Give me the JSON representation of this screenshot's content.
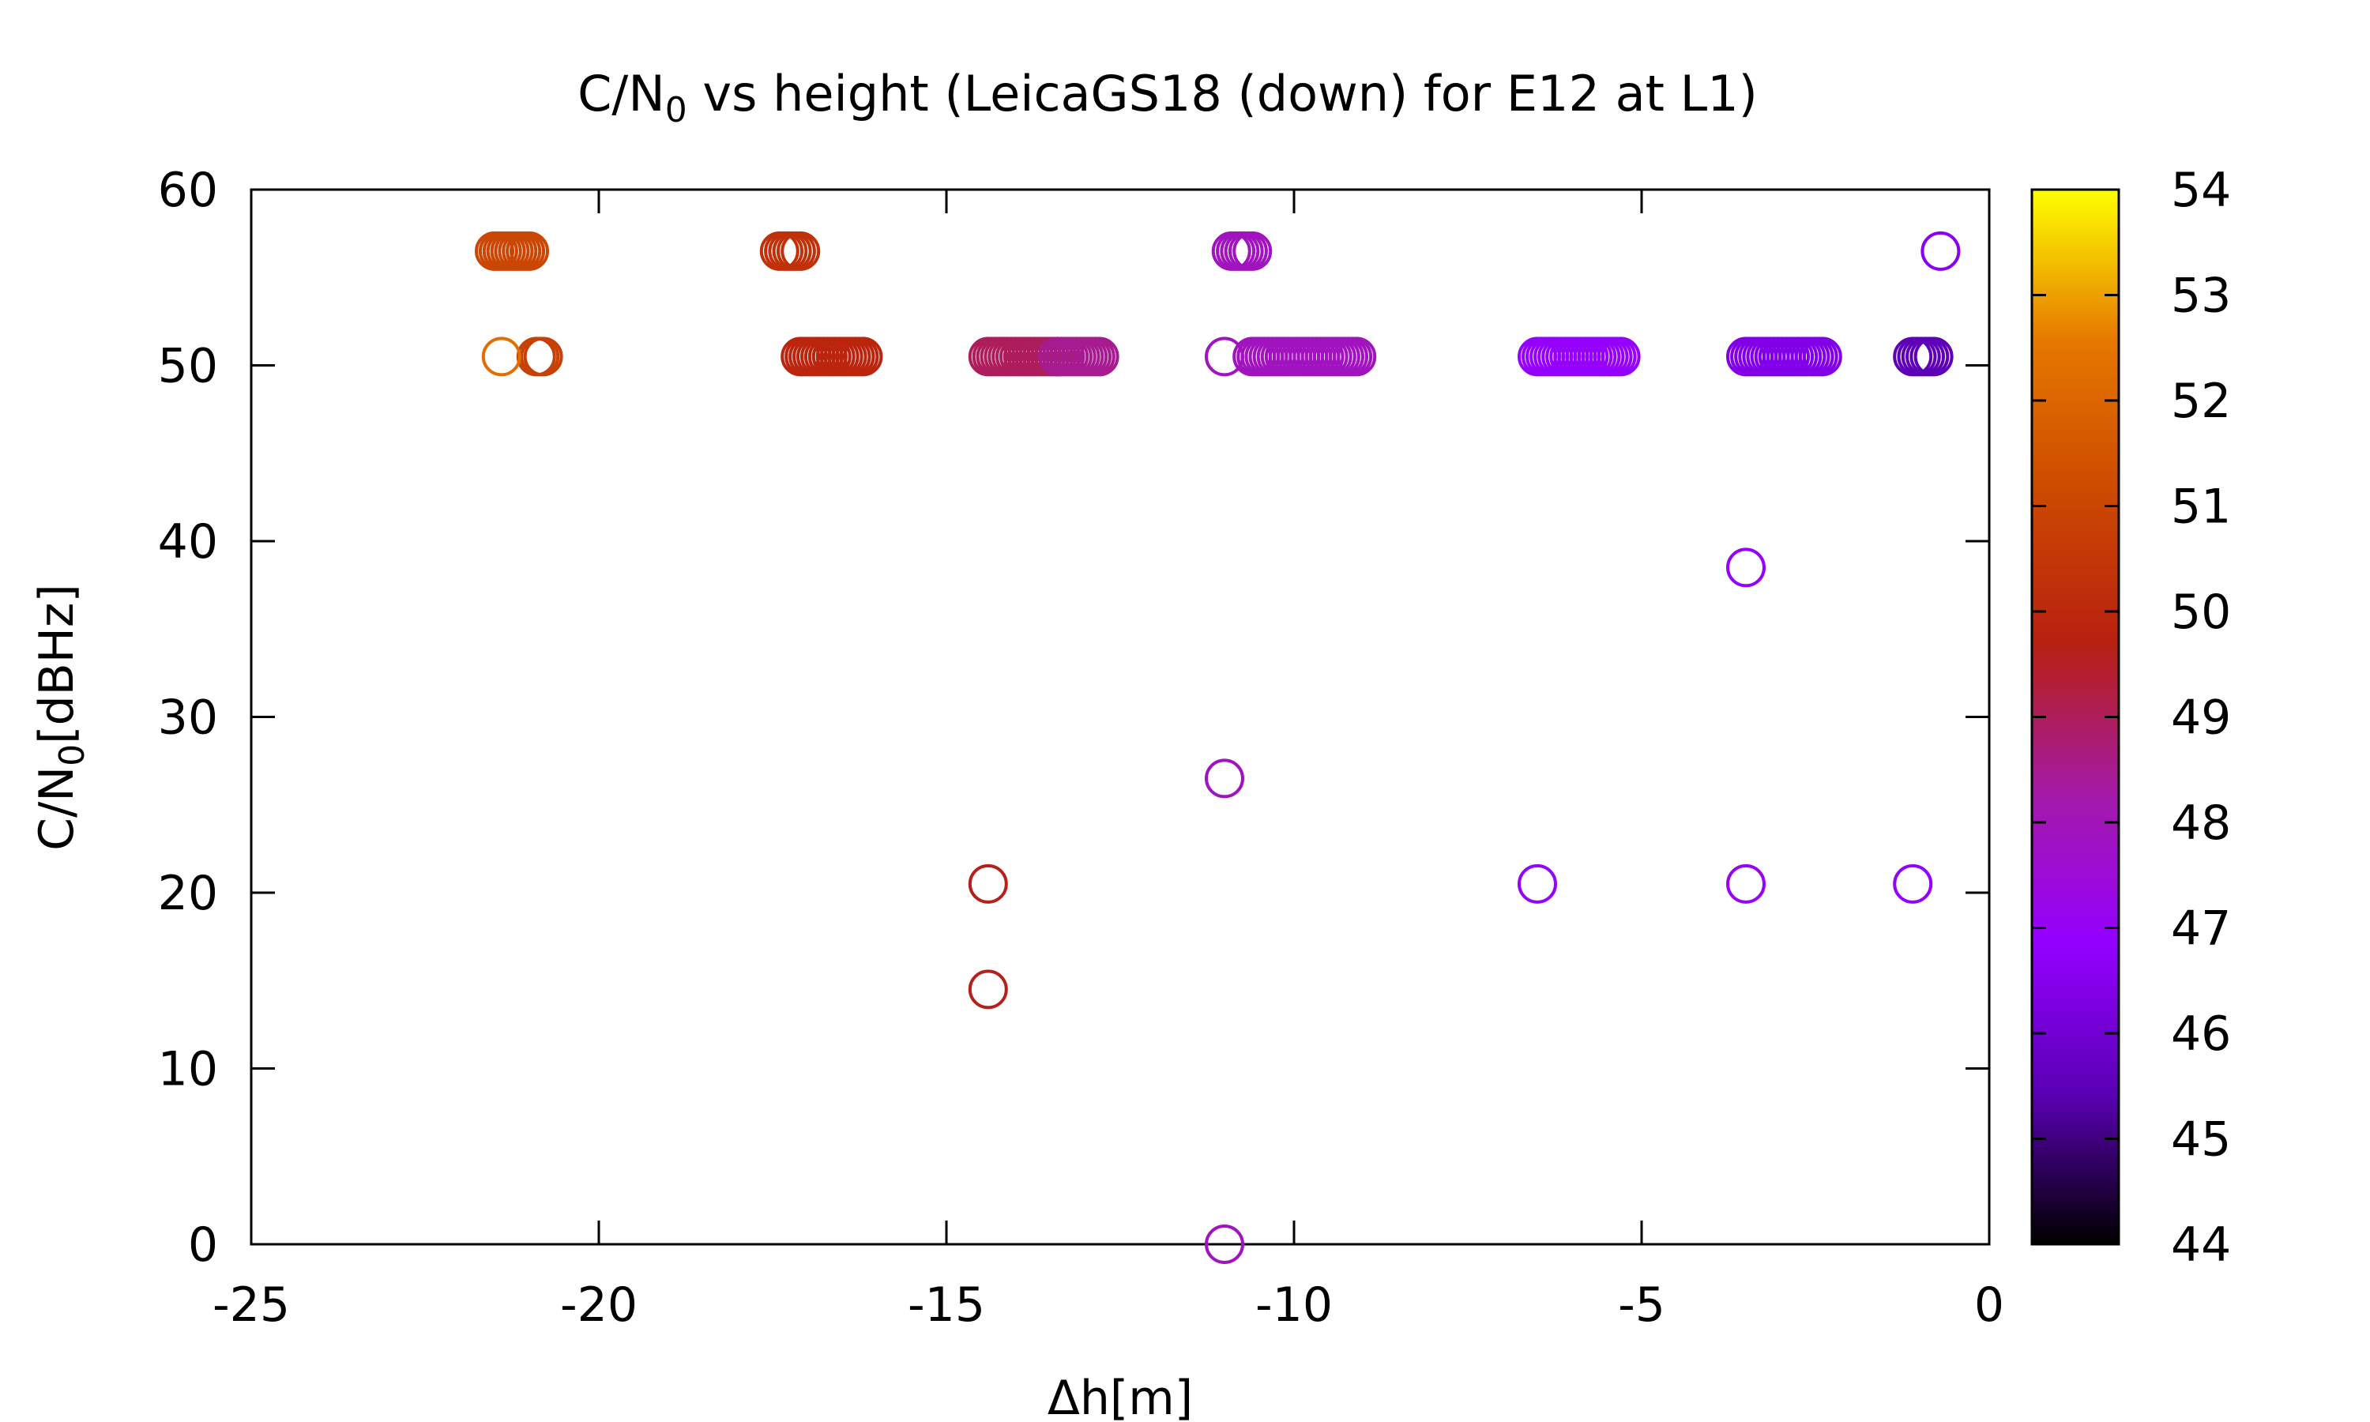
{
  "chart_data": {
    "type": "scatter",
    "title_main": "C/N",
    "title_sub": "0",
    "title_rest": " vs height (LeicaGS18 (down) for E12 at L1)",
    "xlabel": "Δh[m]",
    "ylabel_main": "C/N",
    "ylabel_sub": "0",
    "ylabel_rest": "[dBHz]",
    "xlim": [
      -25,
      0
    ],
    "ylim": [
      0,
      60
    ],
    "xticks": [
      -25,
      -20,
      -15,
      -10,
      -5,
      0
    ],
    "yticks": [
      0,
      10,
      20,
      30,
      40,
      50,
      60
    ],
    "colorbar": {
      "range": [
        44,
        54
      ],
      "ticks": [
        44,
        45,
        46,
        47,
        48,
        49,
        50,
        51,
        52,
        53,
        54
      ],
      "palette": "black-purple-red-yellow",
      "colors": [
        "#000000",
        "#5a00b4",
        "#9400ff",
        "#a41aa6",
        "#b82010",
        "#cc4a00",
        "#e67800",
        "#ffff00"
      ]
    },
    "marker": "open circle",
    "runs": [
      {
        "y": 56.5,
        "x_start": -21.5,
        "x_end": -21.0,
        "z": 51.0
      },
      {
        "y": 56.5,
        "x_start": -17.4,
        "x_end": -17.1,
        "z": 50.3
      },
      {
        "y": 56.5,
        "x_start": -10.9,
        "x_end": -10.6,
        "z": 47.9
      },
      {
        "y": 50.5,
        "x_start": -20.9,
        "x_end": -20.8,
        "z": 50.8
      },
      {
        "y": 50.5,
        "x_start": -17.1,
        "x_end": -16.2,
        "z": 49.9
      },
      {
        "y": 50.5,
        "x_start": -14.4,
        "x_end": -13.4,
        "z": 49.0
      },
      {
        "y": 50.5,
        "x_start": -13.4,
        "x_end": -12.8,
        "z": 48.5
      },
      {
        "y": 50.5,
        "x_start": -10.6,
        "x_end": -9.1,
        "z": 47.9
      },
      {
        "y": 50.5,
        "x_start": -6.5,
        "x_end": -5.3,
        "z": 46.9
      },
      {
        "y": 50.5,
        "x_start": -3.5,
        "x_end": -2.4,
        "z": 46.4
      },
      {
        "y": 50.5,
        "x_start": -1.1,
        "x_end": -0.8,
        "z": 45.5
      }
    ],
    "points": [
      {
        "x": -21.4,
        "y": 50.5,
        "z": 52.3
      },
      {
        "x": -11.0,
        "y": 50.5,
        "z": 47.9
      },
      {
        "x": -0.7,
        "y": 56.5,
        "z": 46.6
      },
      {
        "x": -3.5,
        "y": 38.5,
        "z": 46.9
      },
      {
        "x": -11.0,
        "y": 26.5,
        "z": 47.9
      },
      {
        "x": -14.4,
        "y": 20.5,
        "z": 49.6
      },
      {
        "x": -6.5,
        "y": 20.5,
        "z": 47.0
      },
      {
        "x": -3.5,
        "y": 20.5,
        "z": 47.0
      },
      {
        "x": -1.1,
        "y": 20.5,
        "z": 46.9
      },
      {
        "x": -14.4,
        "y": 14.5,
        "z": 49.6
      },
      {
        "x": -11.0,
        "y": 0,
        "z": 47.9
      }
    ]
  }
}
